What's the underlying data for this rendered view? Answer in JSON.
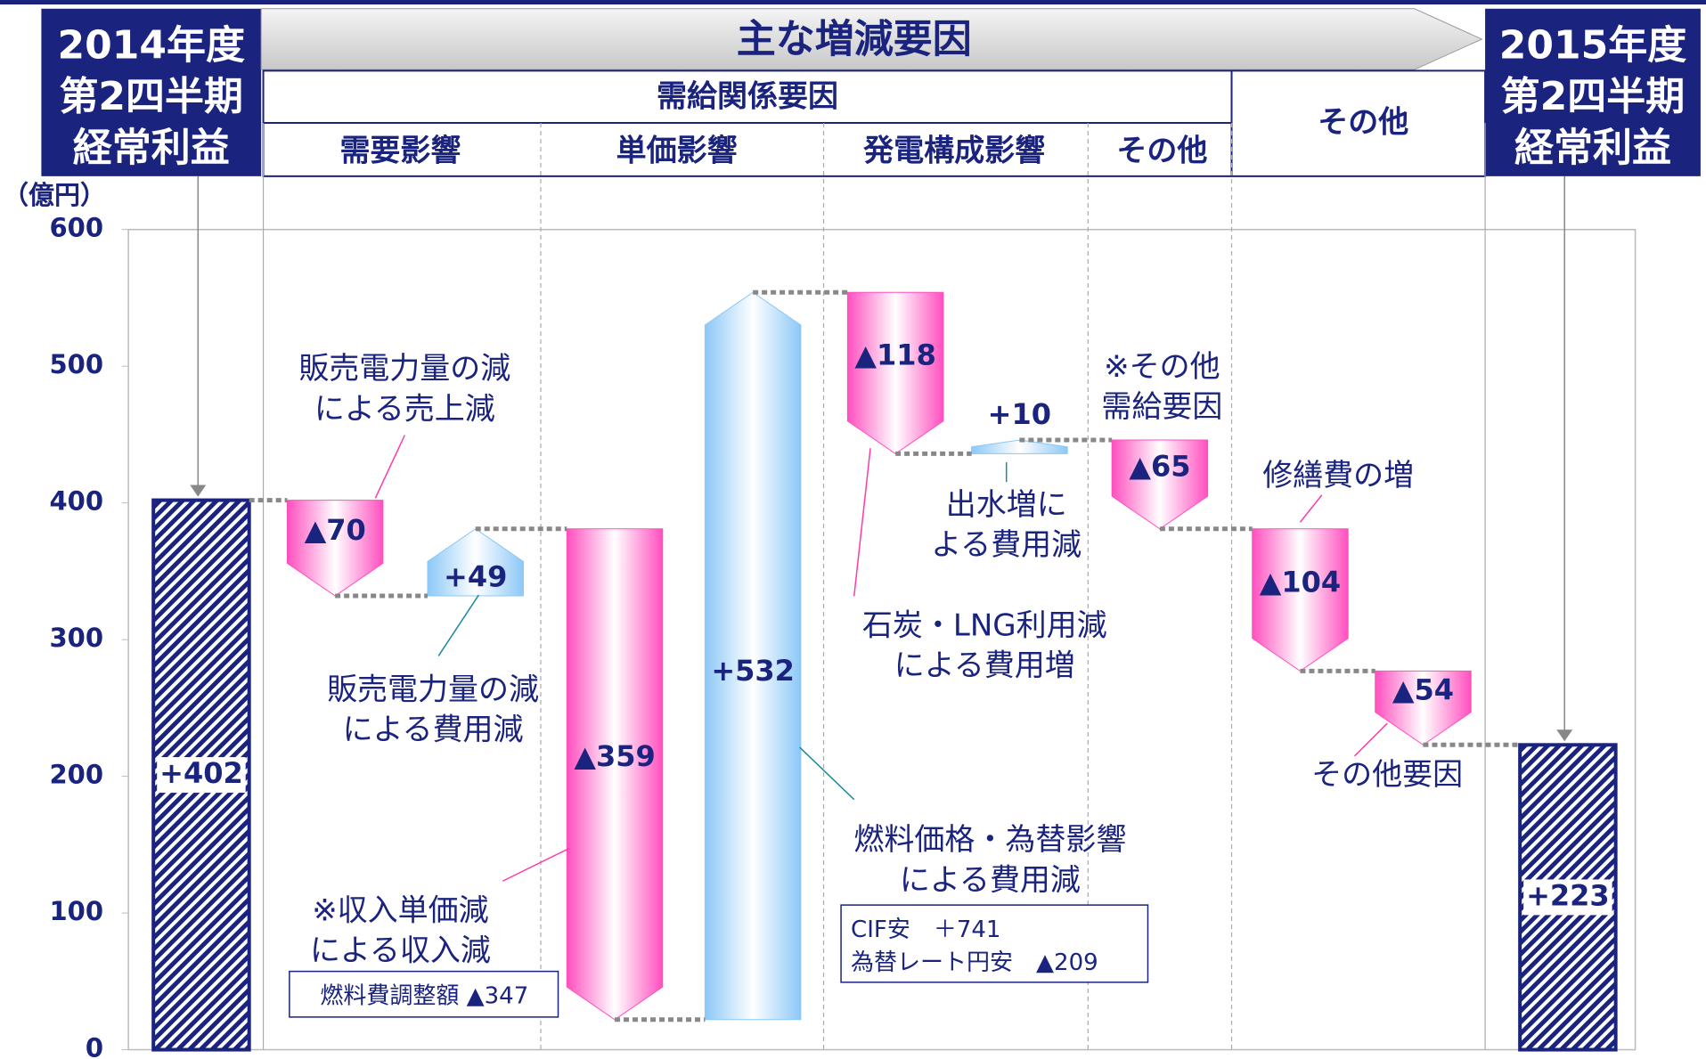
{
  "chart_data": {
    "type": "waterfall",
    "y_label": "（億円）",
    "ylim": [
      0,
      600
    ],
    "yticks": [
      0,
      100,
      200,
      300,
      400,
      500,
      600
    ],
    "values": [
      402,
      -70,
      49,
      -359,
      532,
      -118,
      10,
      -65,
      -104,
      -54,
      223
    ],
    "value_labels": [
      "+402",
      "▲70",
      "+49",
      "▲359",
      "+532",
      "▲118",
      "+10",
      "▲65",
      "▲104",
      "▲54",
      "+223"
    ],
    "increase_color": "#8cc8f7",
    "decrease_color": "#ff4fbf",
    "total_color": "#1a237e",
    "headers": {
      "start": [
        "2014年度",
        "第2四半期",
        "経常利益"
      ],
      "title": "主な増減要因",
      "group": "需給関係要因",
      "subgroups": [
        "需要影響",
        "単価影響",
        "発電構成影響",
        "その他"
      ],
      "other": "その他",
      "end": [
        "2015年度",
        "第2四半期",
        "経常利益"
      ]
    },
    "annotations": [
      {
        "lines": [
          "販売電力量の減",
          "による売上減"
        ]
      },
      {
        "lines": [
          "販売電力量の減",
          "による費用減"
        ]
      },
      {
        "lines": [
          "※収入単価減",
          "による収入減"
        ]
      },
      {
        "lines": [
          "燃料価格・為替影響",
          "による費用減"
        ]
      },
      {
        "lines": [
          "石炭・LNG利用減",
          "による費用増"
        ]
      },
      {
        "lines": [
          "出水増に",
          "よる費用減"
        ]
      },
      {
        "lines": [
          "※その他",
          "需給要因"
        ]
      },
      {
        "lines": [
          "修繕費の増"
        ]
      },
      {
        "lines": [
          "その他要因"
        ]
      }
    ],
    "boxes": [
      {
        "lines": [
          "燃料費調整額 ▲347"
        ]
      },
      {
        "lines": [
          "CIF安　＋741",
          "為替レート円安　▲209"
        ]
      }
    ]
  }
}
